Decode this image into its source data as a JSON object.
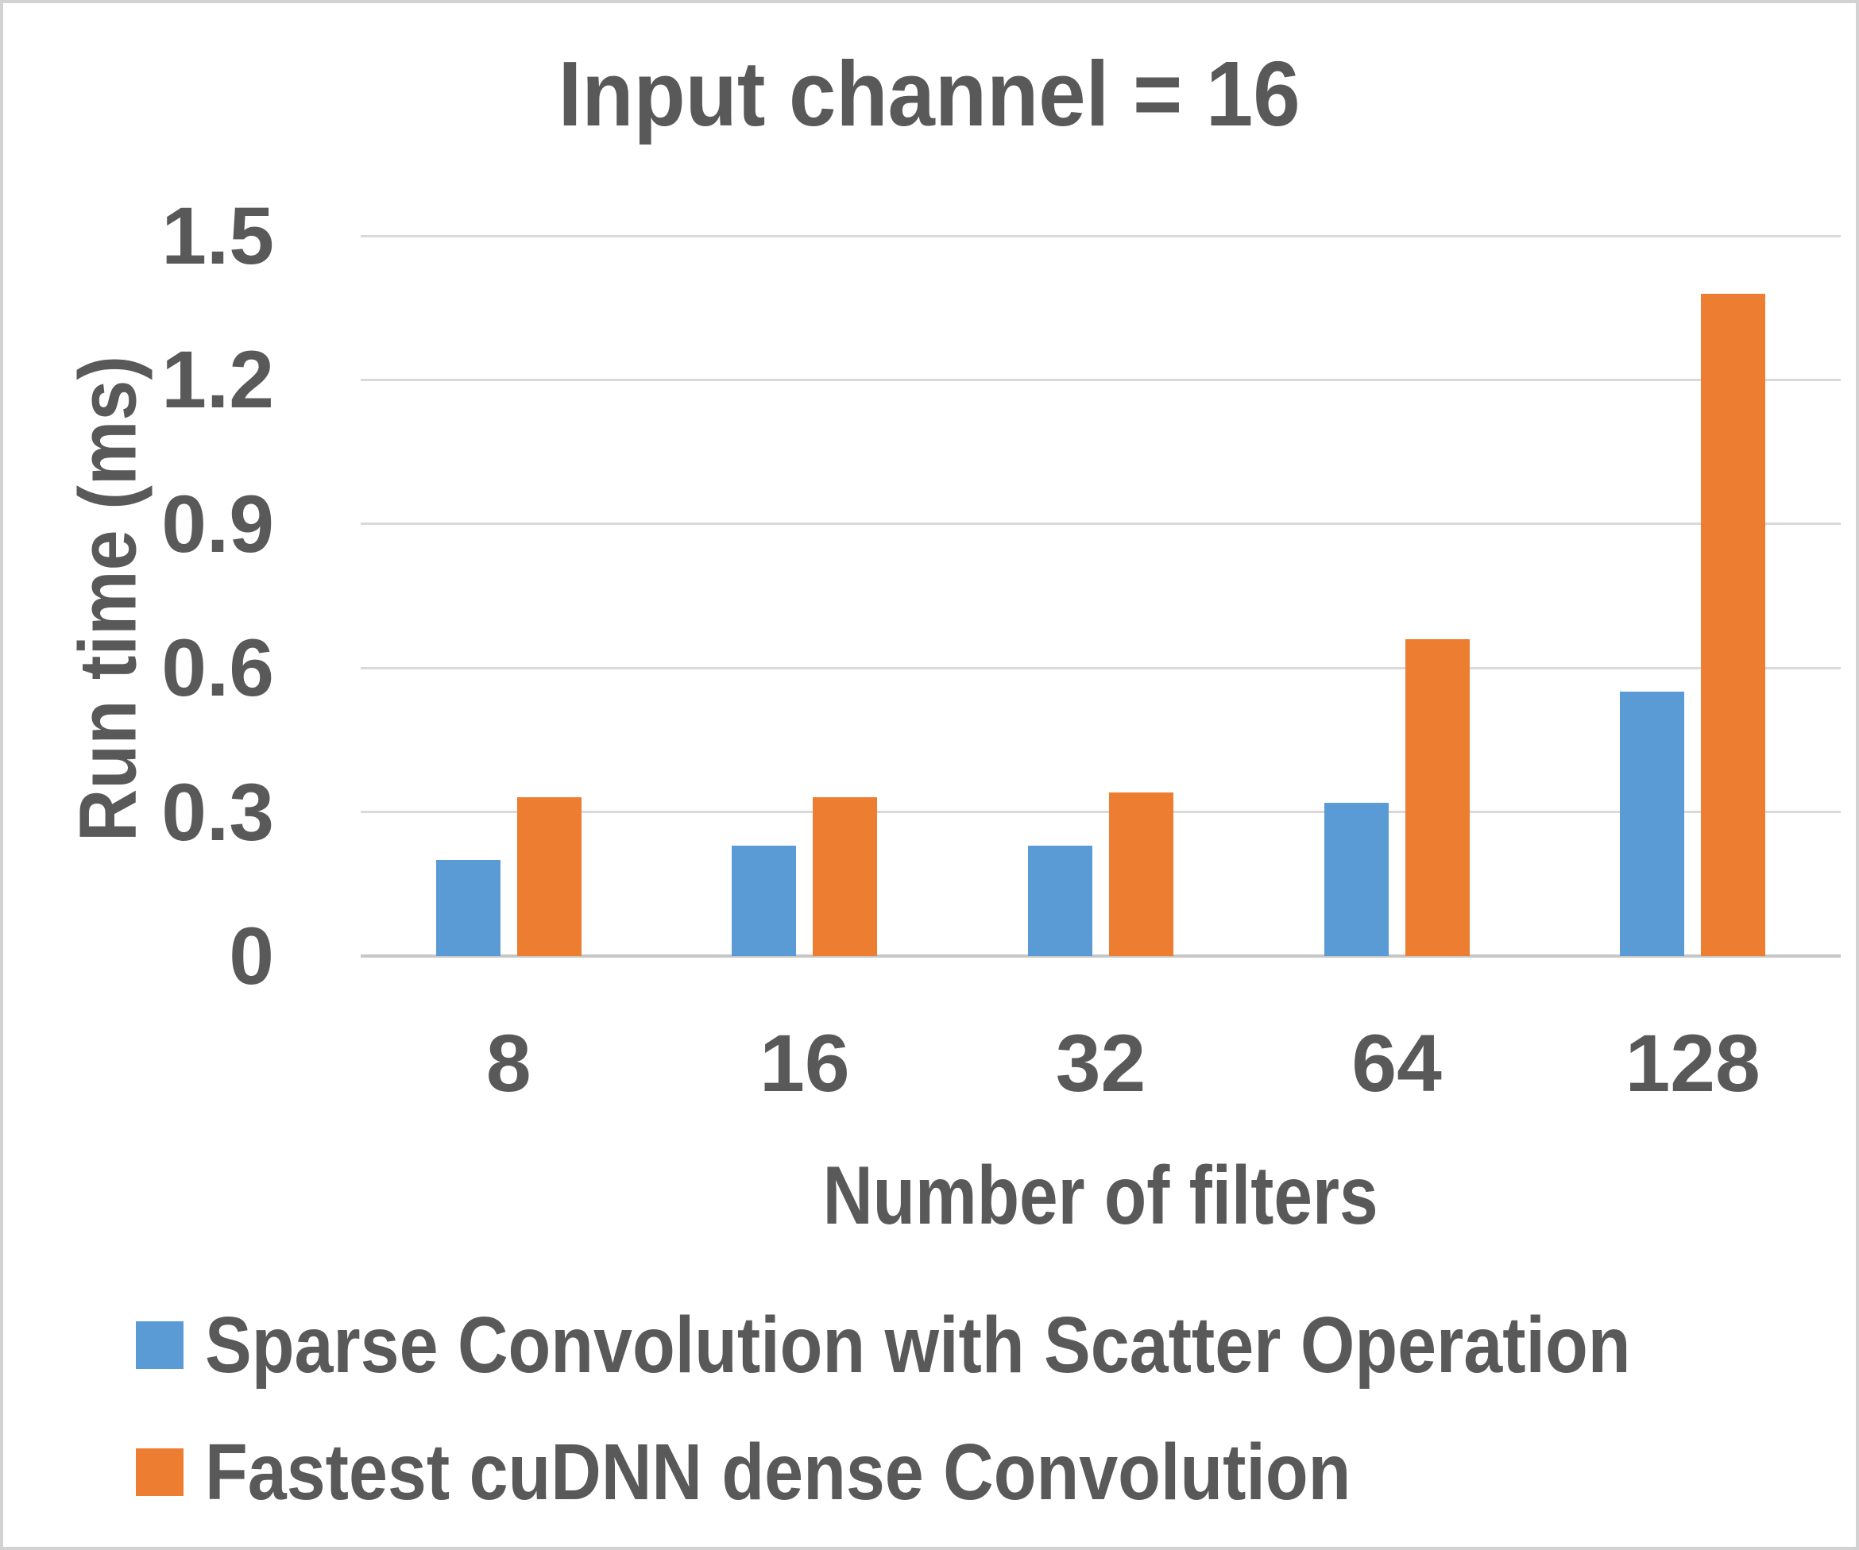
{
  "frame": {
    "background": "#ffffff",
    "border_color": "#d2d2d2",
    "text_color": "#595959",
    "gridline_color": "#d9d9d9",
    "axisline_color": "#c6c6c6"
  },
  "chart_data": {
    "type": "bar",
    "title": "Input channel = 16",
    "xlabel": "Number of filters",
    "ylabel": "Run time (ms)",
    "categories": [
      "8",
      "16",
      "32",
      "64",
      "128"
    ],
    "series": [
      {
        "name": "Sparse Convolution with Scatter Operation",
        "color": "#5B9BD5",
        "values": [
          0.2,
          0.23,
          0.23,
          0.32,
          0.55
        ]
      },
      {
        "name": "Fastest cuDNN dense Convolution",
        "color": "#ED7D31",
        "values": [
          0.33,
          0.33,
          0.34,
          0.66,
          1.38
        ]
      }
    ],
    "ylim": [
      0,
      1.5
    ],
    "yticks": [
      "0",
      "0.3",
      "0.6",
      "0.9",
      "1.2",
      "1.5"
    ],
    "ytick_values": [
      0,
      0.3,
      0.6,
      0.9,
      1.2,
      1.5
    ],
    "grid": true,
    "legend_position": "bottom-left"
  }
}
